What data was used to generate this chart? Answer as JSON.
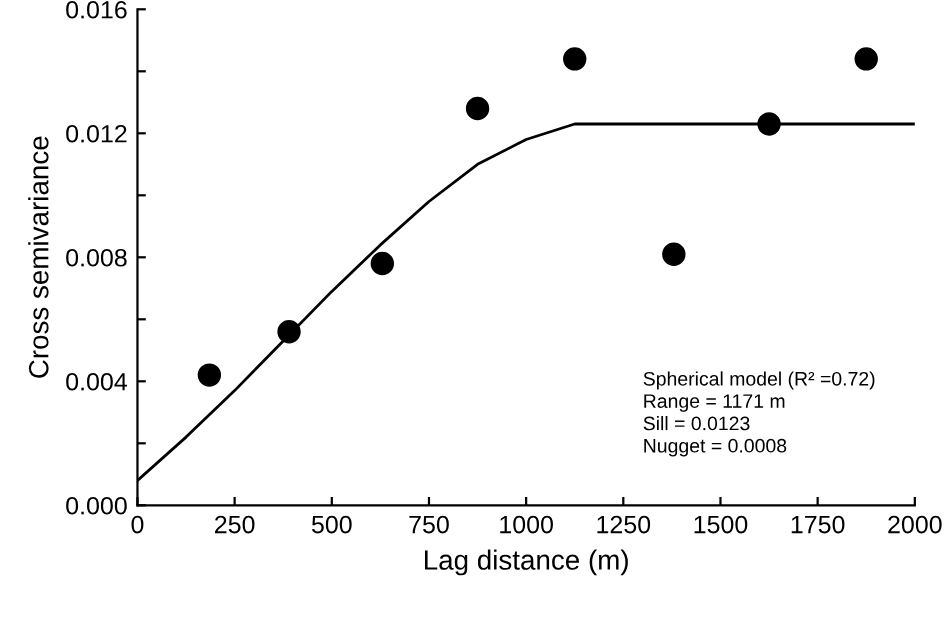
{
  "chart_data": {
    "type": "scatter",
    "xlabel": "Lag distance (m)",
    "ylabel": "Cross semivariance",
    "series": [
      {
        "color": "#000000",
        "marker": "circle",
        "x": [
          185,
          390,
          630,
          875,
          1125,
          1380,
          1625,
          1875
        ],
        "values": [
          0.0042,
          0.0056,
          0.0078,
          0.0128,
          0.0144,
          0.0081,
          0.0123,
          0.0144
        ]
      },
      {
        "type": "line",
        "color": "#000000",
        "marker": "none",
        "line_style": "solid",
        "x": [
          0,
          125,
          250,
          375,
          500,
          625,
          750,
          875,
          1000,
          1125,
          1171,
          2000
        ],
        "values": [
          0.0008,
          0.0022,
          0.0037,
          0.0053,
          0.0069,
          0.0084,
          0.0098,
          0.011,
          0.0118,
          0.0123,
          0.0123,
          0.0123
        ]
      }
    ],
    "xlim": [
      0,
      2000
    ],
    "xticks": [
      0,
      250,
      500,
      750,
      1000,
      1250,
      1500,
      1750,
      2000
    ],
    "ylim": [
      0,
      0.016
    ],
    "yticks": [
      {
        "value": 0,
        "label": "0.000"
      },
      {
        "value": 0.002,
        "label": null
      },
      {
        "value": 0.004,
        "label": "0.004"
      },
      {
        "value": 0.006,
        "label": null
      },
      {
        "value": 0.008,
        "label": "0.008"
      },
      {
        "value": 0.01,
        "label": null
      },
      {
        "value": 0.012,
        "label": "0.012"
      },
      {
        "value": 0.014,
        "label": null
      },
      {
        "value": 0.016,
        "label": "0.016"
      }
    ],
    "annotations": [
      "Spherical model (R² =0.72)",
      "Range = 1171 m",
      "Sill = 0.0123",
      "Nugget = 0.0008"
    ],
    "grid": false
  }
}
